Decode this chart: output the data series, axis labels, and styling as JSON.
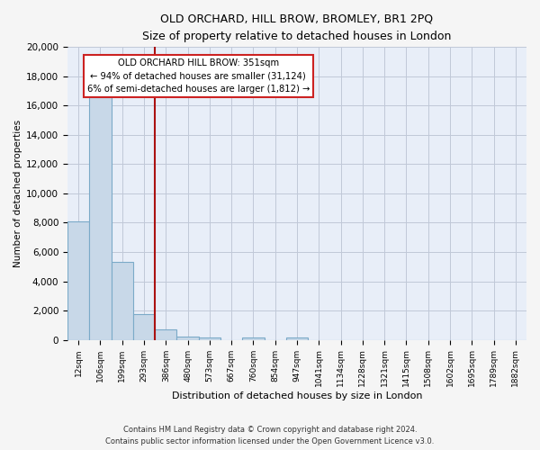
{
  "title": "OLD ORCHARD, HILL BROW, BROMLEY, BR1 2PQ",
  "subtitle": "Size of property relative to detached houses in London",
  "xlabel": "Distribution of detached houses by size in London",
  "ylabel": "Number of detached properties",
  "footnote1": "Contains HM Land Registry data © Crown copyright and database right 2024.",
  "footnote2": "Contains public sector information licensed under the Open Government Licence v3.0.",
  "bin_labels": [
    "12sqm",
    "106sqm",
    "199sqm",
    "293sqm",
    "386sqm",
    "480sqm",
    "573sqm",
    "667sqm",
    "760sqm",
    "854sqm",
    "947sqm",
    "1041sqm",
    "1134sqm",
    "1228sqm",
    "1321sqm",
    "1415sqm",
    "1508sqm",
    "1602sqm",
    "1695sqm",
    "1789sqm",
    "1882sqm"
  ],
  "bar_heights": [
    8100,
    16600,
    5300,
    1750,
    700,
    200,
    170,
    0,
    150,
    0,
    150,
    0,
    0,
    0,
    0,
    0,
    0,
    0,
    0,
    0,
    0
  ],
  "bar_color": "#c8d8e8",
  "bar_edge_color": "#7baac8",
  "vline_x": 4.0,
  "vline_color": "#aa1111",
  "annotation_title": "OLD ORCHARD HILL BROW: 351sqm",
  "annotation_line1": "← 94% of detached houses are smaller (31,124)",
  "annotation_line2": "6% of semi-detached houses are larger (1,812) →",
  "annotation_box_color": "#ffffff",
  "annotation_box_edge": "#cc2222",
  "ylim": [
    0,
    20000
  ],
  "yticks": [
    0,
    2000,
    4000,
    6000,
    8000,
    10000,
    12000,
    14000,
    16000,
    18000,
    20000
  ],
  "grid_color": "#c0c8d8",
  "bg_color": "#e8eef8",
  "fig_bg_color": "#f5f5f5"
}
